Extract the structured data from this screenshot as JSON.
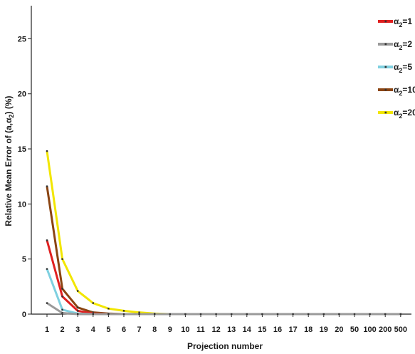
{
  "chart_data": {
    "type": "line",
    "xlabel": "Projection number",
    "ylabel_parts": {
      "prefix": "Relative Mean Error of (a,",
      "alpha": "α",
      "sub": "2",
      "suffix": ") (%)"
    },
    "categories": [
      "1",
      "2",
      "3",
      "4",
      "5",
      "6",
      "7",
      "8",
      "9",
      "10",
      "11",
      "12",
      "13",
      "14",
      "15",
      "16",
      "17",
      "18",
      "19",
      "20",
      "50",
      "100",
      "200",
      "500"
    ],
    "ylim": [
      0,
      28
    ],
    "yticks": [
      "0",
      "5",
      "10",
      "15",
      "20",
      "25"
    ],
    "grid": false,
    "legend_position": "top-right",
    "series": [
      {
        "label_symbol": "α",
        "label_sub": "2",
        "label_value": "=1",
        "color": "#e02020",
        "values": [
          6.7,
          1.6,
          0.3,
          0.05,
          0,
          0,
          0,
          0,
          0,
          0,
          0,
          0,
          0,
          0,
          0,
          0,
          0,
          0,
          0,
          0,
          0,
          0,
          0,
          0
        ]
      },
      {
        "label_symbol": "α",
        "label_sub": "2",
        "label_value": "=2",
        "color": "#9a9a9a",
        "values": [
          1.0,
          0.1,
          0,
          0,
          0,
          0,
          0,
          0,
          0,
          0,
          0,
          0,
          0,
          0,
          0,
          0,
          0,
          0,
          0,
          0,
          0,
          0,
          0,
          0
        ]
      },
      {
        "label_symbol": "α",
        "label_sub": "2",
        "label_value": "=5",
        "color": "#7fd0e0",
        "values": [
          4.1,
          0.4,
          0.05,
          0,
          0,
          0,
          0,
          0,
          0,
          0,
          0,
          0,
          0,
          0,
          0,
          0,
          0,
          0,
          0,
          0,
          0,
          0,
          0,
          0
        ]
      },
      {
        "label_symbol": "α",
        "label_sub": "2",
        "label_value": "=10",
        "color": "#8b4513",
        "values": [
          11.6,
          2.3,
          0.6,
          0.15,
          0.05,
          0,
          0,
          0,
          0,
          0,
          0,
          0,
          0,
          0,
          0,
          0,
          0,
          0,
          0,
          0,
          0,
          0,
          0,
          0
        ]
      },
      {
        "label_symbol": "α",
        "label_sub": "2",
        "label_value": "=20",
        "color": "#f2e600",
        "values": [
          14.8,
          5.0,
          2.1,
          1.0,
          0.5,
          0.3,
          0.15,
          0.05,
          0,
          0,
          0,
          0,
          0,
          0,
          0,
          0,
          0,
          0,
          0,
          0,
          0,
          0,
          0,
          0
        ]
      }
    ]
  }
}
